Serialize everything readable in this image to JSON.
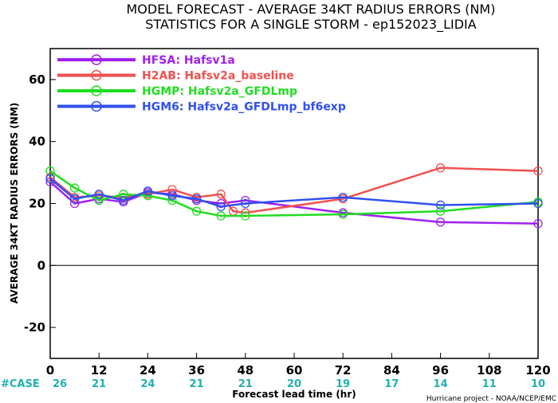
{
  "chart_data": {
    "type": "line",
    "title_line1": "MODEL FORECAST - AVERAGE 34KT RADIUS ERRORS (NM)",
    "title_line2": "STATISTICS FOR A SINGLE STORM - ep152023_LIDIA",
    "xlabel": "Forecast lead time (hr)",
    "ylabel": "AVERAGE 34KT RADIUS ERRORS (NM)",
    "xlim": [
      0,
      120
    ],
    "ylim": [
      -30,
      70
    ],
    "x_ticks": [
      0,
      12,
      24,
      36,
      48,
      60,
      72,
      84,
      96,
      108,
      120
    ],
    "y_ticks": [
      -20,
      0,
      20,
      40,
      60
    ],
    "zero_line": true,
    "case_label": "#CASE",
    "case_x": [
      0,
      12,
      24,
      36,
      48,
      60,
      72,
      84,
      96,
      108,
      120
    ],
    "case_counts": [
      "26",
      "21",
      "24",
      "21",
      "21",
      "20",
      "19",
      "17",
      "14",
      "11",
      "10"
    ],
    "credit": "Hurricane project - NOAA/NCEP/EMC",
    "legend_position": "top-left",
    "series": [
      {
        "name": "HFSA: Hafsv1a",
        "color": "#a020f0",
        "x": [
          0,
          6,
          12,
          18,
          24,
          30,
          36,
          42,
          48,
          72,
          96,
          120
        ],
        "y": [
          27,
          20,
          21.5,
          20.5,
          23.5,
          23,
          21,
          20,
          21,
          17,
          14,
          13.5
        ]
      },
      {
        "name": "H2AB: Hafsv2a_baseline",
        "color": "#f05050",
        "x": [
          0,
          6,
          12,
          18,
          24,
          30,
          36,
          42,
          45,
          48,
          72,
          96,
          120
        ],
        "y": [
          28.5,
          22,
          22.5,
          22,
          23,
          24.5,
          22,
          23,
          17.5,
          17,
          21.5,
          31.5,
          30.5
        ]
      },
      {
        "name": "HGMP: Hafsv2a_GFDLmp",
        "color": "#20dd20",
        "x": [
          0,
          6,
          12,
          18,
          24,
          30,
          36,
          42,
          48,
          72,
          96,
          120
        ],
        "y": [
          30.5,
          25,
          21,
          23,
          22.5,
          21,
          17.5,
          16,
          16,
          16.5,
          17.5,
          20.5
        ]
      },
      {
        "name": "HGM6: Hafsv2a_GFDLmp_bf6exp",
        "color": "#3050f0",
        "x": [
          0,
          6,
          12,
          18,
          24,
          30,
          36,
          42,
          48,
          72,
          96,
          120
        ],
        "y": [
          28,
          21.5,
          23,
          21,
          24,
          22.5,
          21.5,
          19,
          20,
          22,
          19.5,
          20
        ]
      }
    ]
  }
}
